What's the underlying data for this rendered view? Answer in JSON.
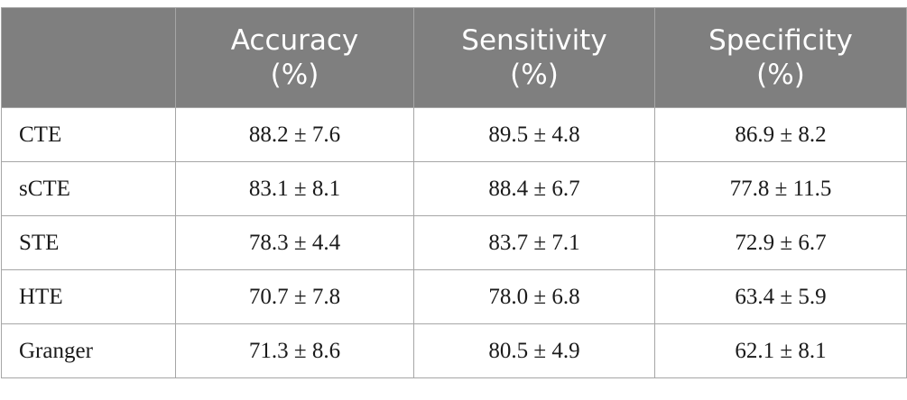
{
  "table": {
    "columns": [
      {
        "key": "method",
        "line1": "",
        "line2": ""
      },
      {
        "key": "accuracy",
        "line1": "Accuracy",
        "line2": "(%)"
      },
      {
        "key": "sensitivity",
        "line1": "Sensitivity",
        "line2": "(%)"
      },
      {
        "key": "specificity",
        "line1": "Specificity",
        "line2": "(%)"
      }
    ],
    "rows": [
      {
        "method": "CTE",
        "accuracy": "88.2 ± 7.6",
        "sensitivity": "89.5 ± 4.8",
        "specificity": "86.9 ± 8.2"
      },
      {
        "method": "sCTE",
        "accuracy": "83.1 ± 8.1",
        "sensitivity": "88.4 ± 6.7",
        "specificity": "77.8 ± 11.5"
      },
      {
        "method": "STE",
        "accuracy": "78.3 ± 4.4",
        "sensitivity": "83.7 ± 7.1",
        "specificity": "72.9 ± 6.7"
      },
      {
        "method": "HTE",
        "accuracy": "70.7 ± 7.8",
        "sensitivity": "78.0 ± 6.8",
        "specificity": "63.4 ± 5.9"
      },
      {
        "method": "Granger",
        "accuracy": "71.3 ± 8.6",
        "sensitivity": "80.5 ± 4.9",
        "specificity": "62.1 ± 8.1"
      }
    ]
  },
  "colors": {
    "header_background": "#7f7f7f",
    "header_text": "#ffffff",
    "border": "#a6a6a6"
  }
}
